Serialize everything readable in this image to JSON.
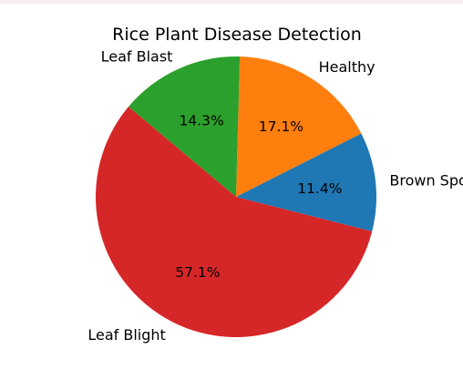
{
  "chart_data": {
    "type": "pie",
    "title": "Rice Plant Disease Detection",
    "start_angle_deg": 140,
    "direction": "counterclockwise",
    "slices": [
      {
        "label": "Leaf Blight",
        "value": 57.1,
        "pct_label": "57.1%",
        "color": "#d62728"
      },
      {
        "label": "Brown Spot",
        "value": 11.4,
        "pct_label": "11.4%",
        "color": "#1f77b4"
      },
      {
        "label": "Healthy",
        "value": 17.1,
        "pct_label": "17.1%",
        "color": "#ff7f0e"
      },
      {
        "label": "Leaf Blast",
        "value": 14.3,
        "pct_label": "14.3%",
        "color": "#2ca02c"
      }
    ],
    "legend": "none",
    "grid": false
  }
}
